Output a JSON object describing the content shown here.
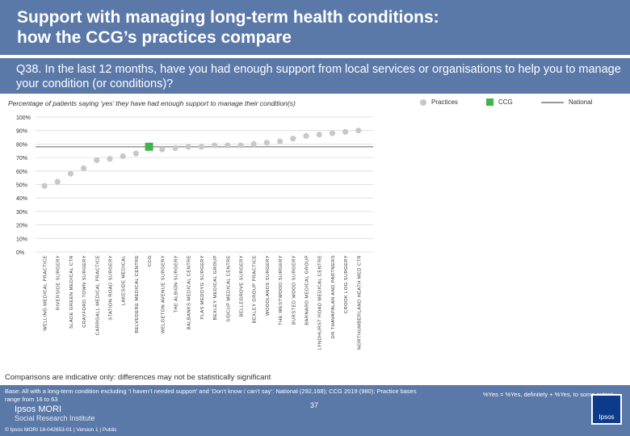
{
  "header": {
    "title": "Support with managing long-term health conditions:\nhow the CCG’s practices compare"
  },
  "question": "Q38. In the last 12 months, have you had enough support from local services or organisations to help you to manage your condition (or conditions)?",
  "subtitle": "Percentage of patients saying ‘yes’ they have had enough support to manage their condition(s)",
  "legend": {
    "practices": "Practices",
    "ccg": "CCG",
    "national": "National"
  },
  "colors": {
    "practice": "#c8c8c8",
    "ccg": "#3cb54a",
    "national": "#9a9a9a",
    "brand": "#5a78a8"
  },
  "chart_data": {
    "type": "scatter",
    "ylim": [
      0,
      100
    ],
    "yticks": [
      "0%",
      "10%",
      "20%",
      "30%",
      "40%",
      "50%",
      "60%",
      "70%",
      "80%",
      "90%",
      "100%"
    ],
    "tick_values": [
      0,
      10,
      20,
      30,
      40,
      50,
      60,
      70,
      80,
      90,
      100
    ],
    "categories": [
      "WELLING MEDICAL PRACTICE",
      "RIVERSIDE SURGERY",
      "SLADE GREEN MEDICAL CTR",
      "CRAYFORD TOWN SURGERY",
      "CARRGALL MEDICAL PRACTICE",
      "STATION ROAD SURGERY",
      "LAKESIDE MEDICAL",
      "BELVEDERE MEDICAL CENTRE",
      "CCG",
      "WELGETON AVENUE SURGERY",
      "THE ALBION SURGERY",
      "BALBANKS MEDICAL CENTRE",
      "PLAS MEDDYG SURGERY",
      "BEXLEY MEDICAL GROUP",
      "SIDCUP MEDICAL CENTRE",
      "BELLEGROVE SURGERY",
      "BEXLEY GROUP PRACTICE",
      "WOODLANDS SURGERY",
      "THE WESTWOOD SURGERY",
      "BURSTED WOOD SURGERY",
      "BARNARD MEDICAL GROUP",
      "LYNDHURST ROAD MEDICAL CENTRE",
      "DR THAVAPALAN AND PARTNERS",
      "CROOK LOG SURGERY",
      "NORTHUMBERLAND HEATH MED CTR"
    ],
    "values": [
      49,
      52,
      58,
      62,
      68,
      69,
      71,
      73,
      78,
      76,
      77,
      78,
      78,
      79,
      79,
      79,
      80,
      81,
      82,
      84,
      86,
      87,
      88,
      89,
      90
    ],
    "highlight_index": 8,
    "national": 78
  },
  "note": "Comparisons are indicative only: differences may not be statistically significant",
  "footer": {
    "base": "Base: All with a long-term condition excluding ‘I haven’t needed support’ and ‘Don’t know / can’t say’: National (292,168); CCG 2019 (980); Practice bases range from 16 to 63",
    "legend_note": "%Yes = %Yes, definitely + %Yes, to some extent",
    "logo_line1": "Ipsos MORI",
    "logo_line2": "Social Research Institute",
    "copyright": "© Ipsos MORI    18-042653-01 | Version 1 | Public",
    "page": "37",
    "ipsos": "Ipsos"
  }
}
